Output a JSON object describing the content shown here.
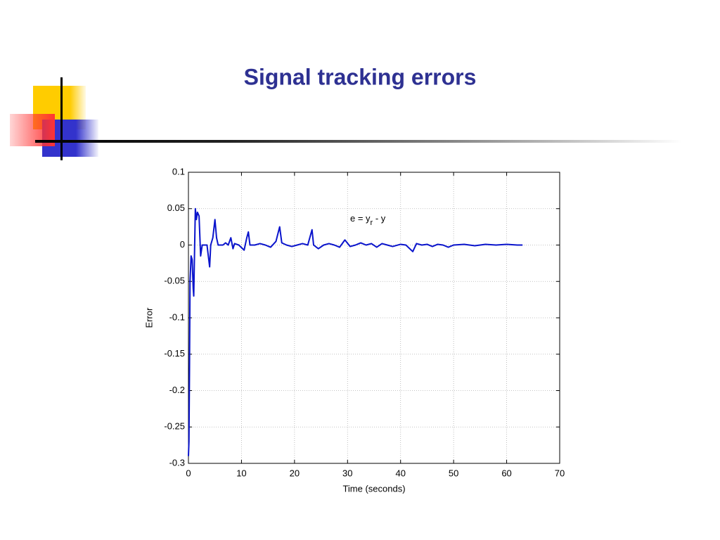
{
  "chart_data": {
    "type": "line",
    "title": "Signal tracking errors",
    "xlabel": "Time (seconds)",
    "ylabel": "Error",
    "annotation": [
      "e = y",
      "r",
      " - y"
    ],
    "color": "#0a14cc",
    "grid": true,
    "xlim": [
      0,
      70
    ],
    "xticks": [
      0,
      10,
      20,
      30,
      40,
      50,
      60,
      70
    ],
    "ylim": [
      -0.3,
      0.1
    ],
    "yticks": [
      0.1,
      0.05,
      0,
      -0.05,
      -0.1,
      -0.15,
      -0.2,
      -0.25,
      -0.3
    ],
    "x": [
      0,
      0.1,
      0.2,
      0.3,
      0.5,
      0.7,
      0.9,
      1.0,
      1.1,
      1.3,
      1.5,
      1.7,
      2.0,
      2.3,
      2.6,
      3.0,
      3.5,
      4.0,
      4.2,
      4.6,
      5.0,
      5.3,
      5.6,
      6.5,
      7.0,
      7.5,
      8.0,
      8.4,
      8.7,
      9.5,
      10.5,
      11.0,
      11.3,
      11.6,
      12.5,
      13.5,
      14.5,
      15.5,
      16.5,
      17.2,
      17.6,
      18.5,
      19.5,
      20.5,
      21.5,
      22.5,
      23.3,
      23.6,
      24.5,
      25.5,
      26.5,
      27.5,
      28.5,
      29.5,
      30.5,
      31.5,
      32.5,
      33.5,
      34.5,
      35.5,
      36.5,
      37.5,
      38.5,
      40,
      41,
      42.3,
      43,
      44,
      45,
      46,
      47,
      48,
      49,
      50,
      52,
      54,
      56,
      58,
      60,
      62,
      63
    ],
    "values": [
      -0.29,
      -0.27,
      -0.17,
      -0.05,
      -0.015,
      -0.02,
      -0.06,
      -0.07,
      -0.03,
      0.05,
      0.035,
      0.045,
      0.04,
      -0.015,
      0.0,
      0.0,
      0.0,
      -0.03,
      0.0,
      0.01,
      0.035,
      0.01,
      0.0,
      0.0,
      0.003,
      0.0,
      0.01,
      -0.005,
      0.002,
      0.0,
      -0.007,
      0.01,
      0.018,
      0.0,
      0.0,
      0.002,
      0.0,
      -0.003,
      0.005,
      0.025,
      0.003,
      0.0,
      -0.002,
      0.0,
      0.002,
      0.0,
      0.021,
      0.0,
      -0.005,
      0.0,
      0.002,
      0.0,
      -0.003,
      0.007,
      -0.002,
      0.0,
      0.003,
      0.0,
      0.002,
      -0.003,
      0.002,
      0.0,
      -0.002,
      0.001,
      0.0,
      -0.009,
      0.002,
      0.0,
      0.001,
      -0.002,
      0.001,
      0.0,
      -0.003,
      0.0,
      0.001,
      -0.001,
      0.001,
      0.0,
      0.001,
      0.0,
      0.0
    ]
  }
}
